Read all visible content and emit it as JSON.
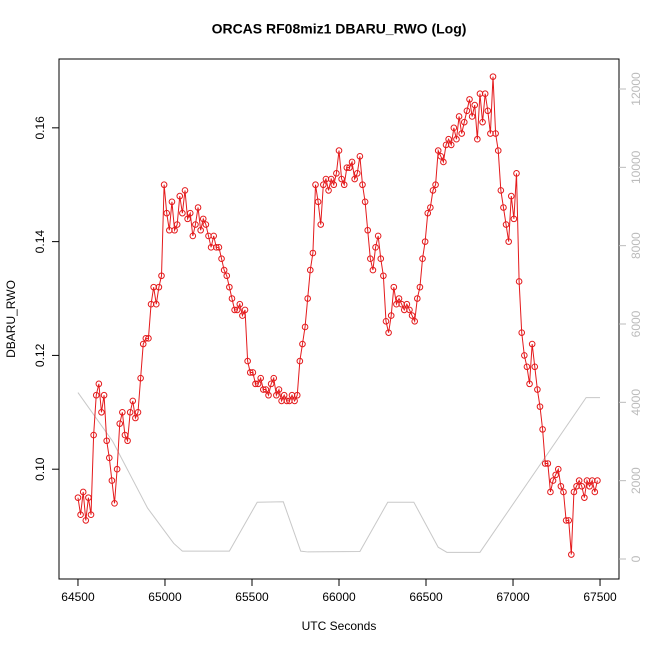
{
  "chart_data": {
    "type": "line",
    "title": "ORCAS RF08miz1 DBARU_RWO (Log)",
    "x_label": "UTC Seconds",
    "y_label": "DBARU_RWO",
    "xlim": [
      64391,
      67609
    ],
    "xticks": [
      64500,
      65000,
      65500,
      66000,
      66500,
      67000,
      67500
    ],
    "ylim": [
      0.0807,
      0.1721
    ],
    "yticks": [
      {
        "value": 0.1,
        "label": "0.10"
      },
      0.12,
      0.14,
      0.16
    ],
    "y2lim": [
      -511,
      12766
    ],
    "y2ticks": [
      0,
      2000,
      4000,
      6000,
      8000,
      10000,
      12000
    ],
    "series": [
      {
        "color": "#e41a1c",
        "x": [
          64500,
          64515,
          64530,
          64545,
          64560,
          64575,
          64590,
          64605,
          64620,
          64635,
          64650,
          64665,
          64680,
          64695,
          64710,
          64725,
          64740,
          64755,
          64770,
          64785,
          64800,
          64815,
          64830,
          64845,
          64860,
          64875,
          64890,
          64905,
          64920,
          64935,
          64950,
          64965,
          64980,
          64995,
          65010,
          65025,
          65040,
          65055,
          65070,
          65085,
          65100,
          65115,
          65130,
          65145,
          65160,
          65175,
          65190,
          65205,
          65220,
          65235,
          65250,
          65265,
          65280,
          65295,
          65310,
          65325,
          65340,
          65355,
          65370,
          65385,
          65400,
          65415,
          65430,
          65445,
          65460,
          65475,
          65490,
          65505,
          65520,
          65535,
          65550,
          65565,
          65580,
          65595,
          65610,
          65625,
          65640,
          65655,
          65670,
          65685,
          65700,
          65715,
          65730,
          65745,
          65760,
          65775,
          65790,
          65805,
          65820,
          65835,
          65850,
          65865,
          65880,
          65895,
          65910,
          65925,
          65940,
          65955,
          65970,
          65985,
          66000,
          66015,
          66030,
          66045,
          66060,
          66075,
          66090,
          66105,
          66120,
          66135,
          66150,
          66165,
          66180,
          66195,
          66210,
          66225,
          66240,
          66255,
          66270,
          66285,
          66300,
          66315,
          66330,
          66345,
          66360,
          66375,
          66390,
          66405,
          66420,
          66435,
          66450,
          66465,
          66480,
          66495,
          66510,
          66525,
          66540,
          66555,
          66570,
          66585,
          66600,
          66615,
          66630,
          66645,
          66660,
          66675,
          66690,
          66705,
          66720,
          66735,
          66750,
          66765,
          66780,
          66795,
          66810,
          66825,
          66840,
          66855,
          66870,
          66885,
          66900,
          66915,
          66930,
          66945,
          66960,
          66975,
          66990,
          67005,
          67020,
          67035,
          67050,
          67065,
          67080,
          67095,
          67110,
          67125,
          67140,
          67155,
          67170,
          67185,
          67200,
          67215,
          67230,
          67245,
          67260,
          67275,
          67290,
          67305,
          67320,
          67335,
          67350,
          67365,
          67380,
          67395,
          67410,
          67425,
          67440,
          67455,
          67470,
          67485
        ],
        "values": [
          0.095,
          0.092,
          0.096,
          0.091,
          0.095,
          0.092,
          0.106,
          0.113,
          0.115,
          0.11,
          0.113,
          0.105,
          0.102,
          0.098,
          0.094,
          0.1,
          0.108,
          0.11,
          0.106,
          0.105,
          0.11,
          0.112,
          0.109,
          0.11,
          0.116,
          0.122,
          0.123,
          0.123,
          0.129,
          0.132,
          0.129,
          0.132,
          0.134,
          0.15,
          0.145,
          0.142,
          0.147,
          0.142,
          0.143,
          0.148,
          0.145,
          0.149,
          0.144,
          0.145,
          0.141,
          0.143,
          0.146,
          0.142,
          0.144,
          0.143,
          0.141,
          0.139,
          0.141,
          0.139,
          0.139,
          0.137,
          0.135,
          0.134,
          0.132,
          0.13,
          0.128,
          0.128,
          0.129,
          0.127,
          0.128,
          0.119,
          0.117,
          0.117,
          0.115,
          0.115,
          0.116,
          0.114,
          0.114,
          0.113,
          0.115,
          0.116,
          0.113,
          0.114,
          0.112,
          0.113,
          0.112,
          0.112,
          0.113,
          0.112,
          0.113,
          0.119,
          0.122,
          0.125,
          0.13,
          0.135,
          0.138,
          0.15,
          0.147,
          0.143,
          0.15,
          0.151,
          0.149,
          0.151,
          0.15,
          0.152,
          0.156,
          0.151,
          0.15,
          0.153,
          0.153,
          0.154,
          0.151,
          0.152,
          0.155,
          0.15,
          0.147,
          0.142,
          0.137,
          0.135,
          0.139,
          0.141,
          0.137,
          0.134,
          0.126,
          0.124,
          0.127,
          0.132,
          0.129,
          0.13,
          0.129,
          0.128,
          0.129,
          0.128,
          0.127,
          0.126,
          0.13,
          0.132,
          0.137,
          0.14,
          0.145,
          0.146,
          0.149,
          0.15,
          0.156,
          0.155,
          0.154,
          0.157,
          0.158,
          0.157,
          0.16,
          0.158,
          0.162,
          0.159,
          0.161,
          0.163,
          0.165,
          0.162,
          0.164,
          0.158,
          0.166,
          0.161,
          0.166,
          0.163,
          0.159,
          0.169,
          0.159,
          0.156,
          0.149,
          0.146,
          0.143,
          0.14,
          0.148,
          0.144,
          0.152,
          0.133,
          0.124,
          0.12,
          0.118,
          0.115,
          0.122,
          0.118,
          0.114,
          0.111,
          0.107,
          0.101,
          0.101,
          0.096,
          0.098,
          0.099,
          0.1,
          0.097,
          0.096,
          0.091,
          0.091,
          0.085,
          0.096,
          0.097,
          0.098,
          0.097,
          0.095,
          0.098,
          0.097,
          0.098,
          0.096,
          0.098
        ]
      },
      {
        "color": "#c8c8c8",
        "axis": "y2",
        "x": [
          64500,
          64700,
          64900,
          65000,
          65050,
          65100,
          65370,
          65530,
          65680,
          65780,
          65820,
          66120,
          66280,
          66430,
          66570,
          66620,
          66810,
          67420,
          67500
        ],
        "values": [
          4250,
          3000,
          1300,
          700,
          400,
          200,
          200,
          1450,
          1460,
          200,
          180,
          190,
          1450,
          1450,
          300,
          170,
          170,
          4120,
          4120
        ]
      }
    ]
  }
}
